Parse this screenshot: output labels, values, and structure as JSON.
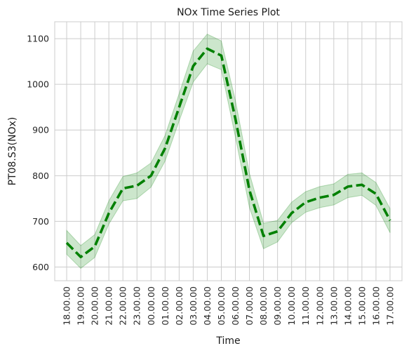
{
  "chart_data": {
    "type": "line",
    "title": "NOx Time Series Plot",
    "xlabel": "Time",
    "ylabel": "PT08.S3(NOx)",
    "categories": [
      "18.00.00",
      "19.00.00",
      "20.00.00",
      "21.00.00",
      "22.00.00",
      "23.00.00",
      "00.00.00",
      "01.00.00",
      "02.00.00",
      "03.00.00",
      "04.00.00",
      "05.00.00",
      "06.00.00",
      "07.00.00",
      "08.00.00",
      "09.00.00",
      "10.00.00",
      "11.00.00",
      "12.00.00",
      "13.00.00",
      "14.00.00",
      "15.00.00",
      "16.00.00",
      "17.00.00"
    ],
    "series": [
      {
        "values": [
          653,
          622,
          645,
          718,
          772,
          778,
          800,
          860,
          950,
          1040,
          1078,
          1063,
          925,
          768,
          668,
          678,
          718,
          742,
          752,
          758,
          776,
          780,
          760,
          702
        ],
        "lower": [
          628,
          597,
          621,
          694,
          745,
          750,
          775,
          832,
          920,
          1005,
          1045,
          1032,
          885,
          730,
          640,
          655,
          697,
          720,
          730,
          736,
          752,
          757,
          735,
          675
        ],
        "upper": [
          680,
          647,
          671,
          745,
          798,
          806,
          828,
          888,
          980,
          1073,
          1110,
          1095,
          965,
          805,
          696,
          702,
          742,
          765,
          776,
          782,
          803,
          806,
          785,
          728
        ],
        "color": "#008000",
        "band_color": "#008000",
        "line_style": "dashed"
      }
    ],
    "ylim": [
      570,
      1137
    ],
    "yticks": [
      600,
      700,
      800,
      900,
      1000,
      1100
    ],
    "grid": true,
    "legend": "none"
  }
}
